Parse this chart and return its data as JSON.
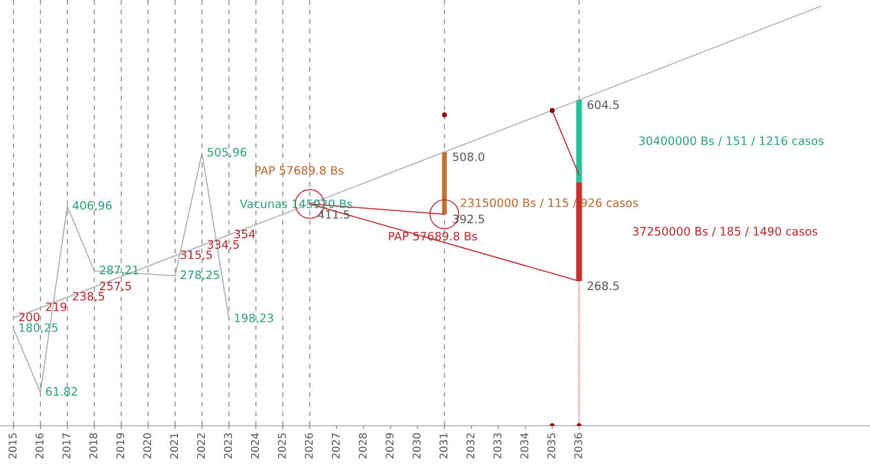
{
  "chart_data": {
    "type": "line",
    "xlim": [
      2014.5,
      2046.8
    ],
    "ylim": [
      0,
      790
    ],
    "xticks": [
      2015,
      2016,
      2017,
      2018,
      2019,
      2020,
      2021,
      2022,
      2023,
      2024,
      2025,
      2026,
      2027,
      2028,
      2029,
      2030,
      2031,
      2032,
      2033,
      2034,
      2035,
      2036
    ],
    "tick_labels": "x",
    "grid": false,
    "ref_lines": [
      {
        "axis": "x",
        "value": 2015,
        "line_style": "dashed",
        "color": "#888888"
      },
      {
        "axis": "x",
        "value": 2016,
        "line_style": "dashed",
        "color": "#888888"
      },
      {
        "axis": "x",
        "value": 2017,
        "line_style": "dashed",
        "color": "#888888"
      },
      {
        "axis": "x",
        "value": 2018,
        "line_style": "dashed",
        "color": "#888888"
      },
      {
        "axis": "x",
        "value": 2019,
        "line_style": "dashed",
        "color": "#888888"
      },
      {
        "axis": "x",
        "value": 2020,
        "line_style": "dashed",
        "color": "#888888"
      },
      {
        "axis": "x",
        "value": 2021,
        "line_style": "dashed",
        "color": "#888888"
      },
      {
        "axis": "x",
        "value": 2022,
        "line_style": "dashed",
        "color": "#888888"
      },
      {
        "axis": "x",
        "value": 2023,
        "line_style": "dashed",
        "color": "#888888"
      },
      {
        "axis": "x",
        "value": 2024,
        "line_style": "dashed",
        "color": "#888888"
      },
      {
        "axis": "x",
        "value": 2025,
        "line_style": "dashed",
        "color": "#888888"
      },
      {
        "axis": "x",
        "value": 2026,
        "line_style": "dashed",
        "color": "#888888"
      },
      {
        "axis": "x",
        "value": 2031,
        "line_style": "dashed",
        "color": "#888888"
      },
      {
        "axis": "x",
        "value": 2036,
        "line_style": "dashed",
        "color": "#888888"
      }
    ],
    "series": [
      {
        "color": "#aaaaaa",
        "x": [
          2015,
          2016,
          2017,
          2018,
          2021,
          2022,
          2023
        ],
        "values": [
          180.25,
          61.82,
          406.96,
          287.21,
          278.25,
          505.96,
          198.23
        ],
        "value_labels": [
          "180,25",
          "61.82",
          "406,96",
          "287,21",
          "278,25",
          "505,96",
          "198,23"
        ]
      },
      {
        "color": "#aaaaaa",
        "x": [
          2015,
          2016,
          2017,
          2018,
          2021,
          2022,
          2023,
          2026,
          2036,
          2045
        ],
        "values": [
          200,
          219,
          238.5,
          257.5,
          315.5,
          334.5,
          354,
          411.5,
          604.5,
          779
        ],
        "value_labels": [
          "200",
          "219",
          "238,5",
          "257,5",
          "315,5",
          "334,5",
          "354",
          "411.5",
          null,
          null
        ]
      },
      {
        "color": "#b8262c",
        "x": [
          2031,
          2026,
          2036
        ],
        "values": [
          392.5,
          411.5,
          268.5
        ]
      },
      {
        "color": "#b8262c",
        "x": [
          2035,
          2036
        ],
        "values": [
          585,
          465
        ]
      },
      {
        "color": "#e8a0a0",
        "x": [
          2036,
          2036
        ],
        "values": [
          0,
          268.5
        ]
      },
      {
        "color": "#c07030",
        "x": [
          2031,
          2031
        ],
        "values": [
          392.5,
          508
        ],
        "value_labels": [
          "392.5",
          "508.0"
        ]
      },
      {
        "color": "#c4302b",
        "x": [
          2036,
          2036
        ],
        "values": [
          268.5,
          452
        ],
        "value_labels": [
          "268.5",
          null
        ]
      },
      {
        "color": "#2bbf9c",
        "x": [
          2036,
          2036
        ],
        "values": [
          452,
          604.5
        ],
        "value_labels": [
          null,
          "604.5"
        ]
      },
      {
        "type": "scatter",
        "color": "#b8262c",
        "marker": "circle",
        "x": [
          2026,
          2031
        ],
        "values": [
          411.5,
          392.5
        ]
      },
      {
        "type": "scatter",
        "color": "#8b0000",
        "x": [
          2031,
          2035,
          2035,
          2036
        ],
        "values": [
          577,
          585,
          0,
          0
        ]
      }
    ],
    "annotations": [
      "PAP 57689.8 Bs",
      "Vacunas 145920 Bs",
      "23150000 Bs / 115 / 926 casos",
      "PAP 57689.8 Bs",
      "30400000 Bs / 151 / 1216 casos",
      "37250000 Bs / 185 / 1490 casos"
    ]
  }
}
